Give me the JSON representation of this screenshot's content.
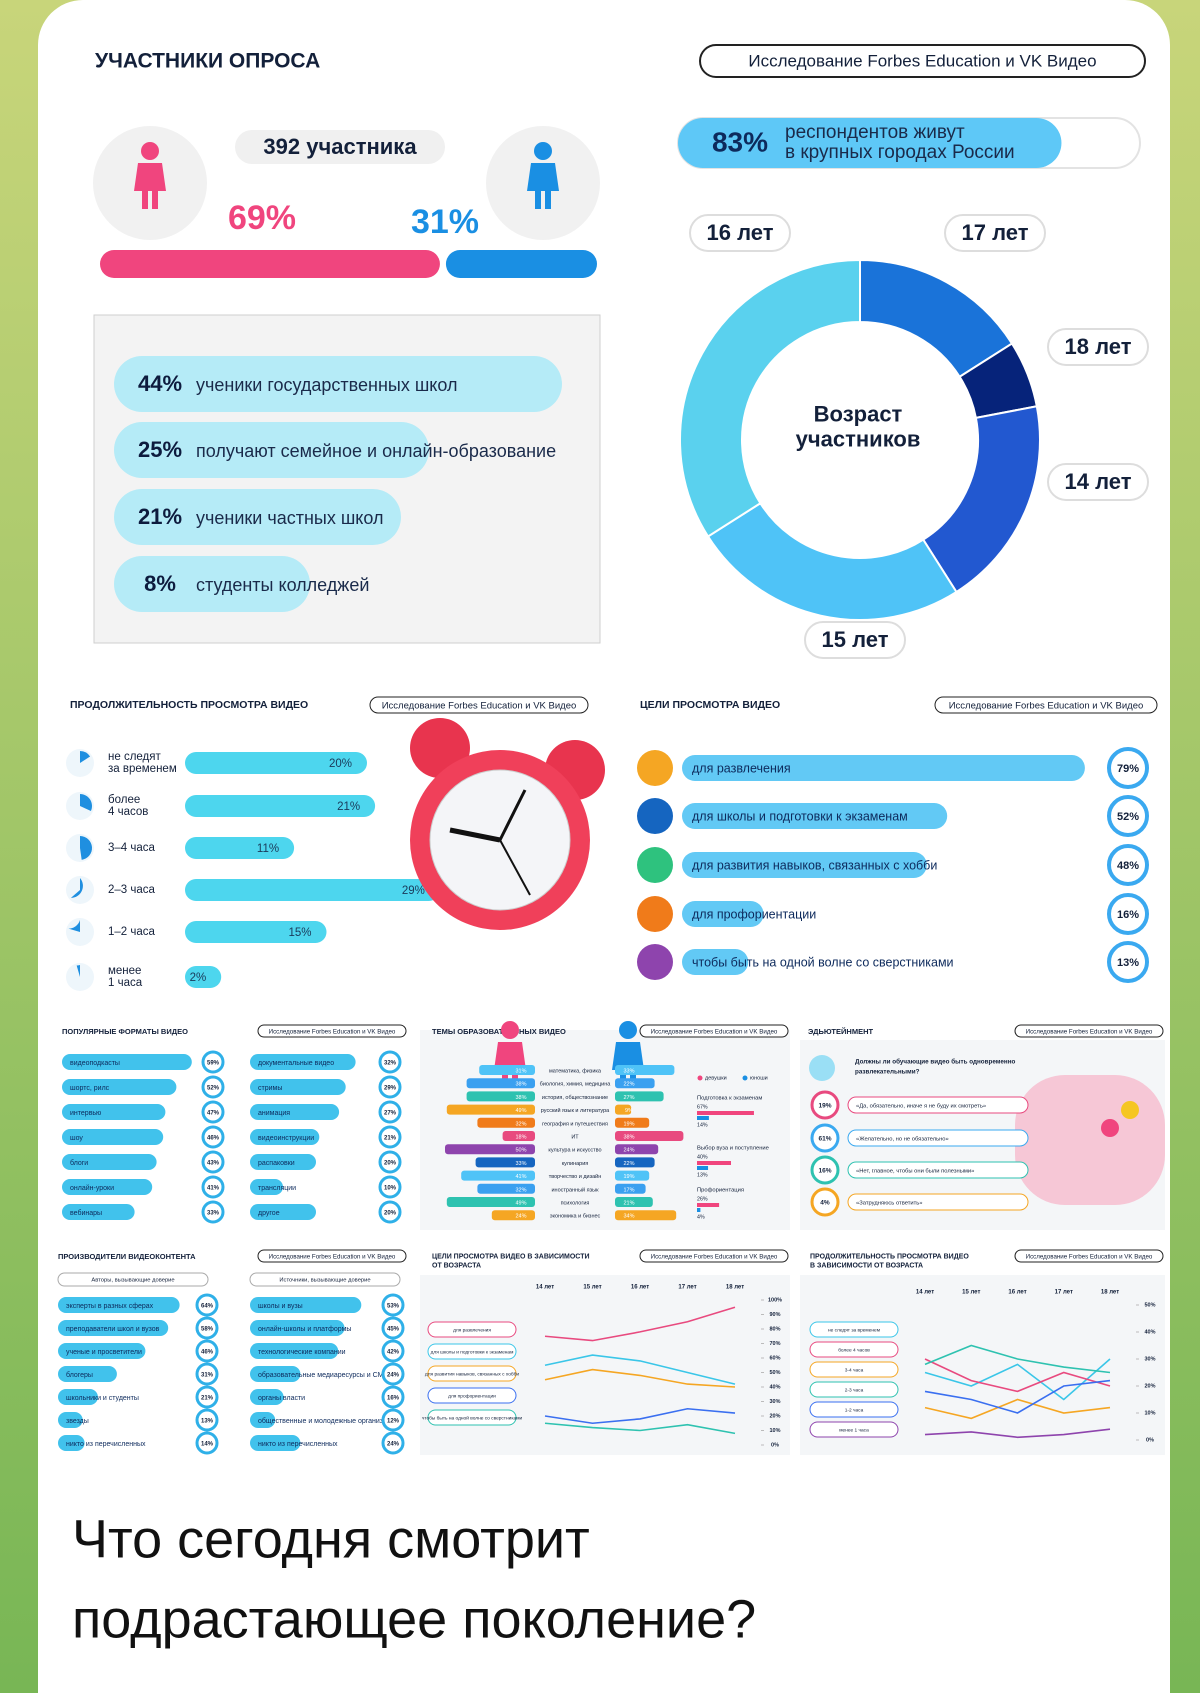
{
  "source": "Исследование Forbes Education и VK Видео",
  "participants": {
    "title": "УЧАСТНИКИ ОПРОСА",
    "count": "392 участника",
    "gender": [
      {
        "value": 69,
        "label": "69%",
        "color": "#f0457e"
      },
      {
        "value": 31,
        "label": "31%",
        "color": "#1a8fe3"
      }
    ],
    "city": {
      "value": 83,
      "label": "83%",
      "text": [
        "респондентов живут",
        "в крупных городах России"
      ]
    },
    "schools": [
      {
        "value": 44,
        "label": "44%",
        "text": "ученики государственных школ"
      },
      {
        "value": 25,
        "label": "25%",
        "text": "получают семейное и онлайн-образование"
      },
      {
        "value": 21,
        "label": "21%",
        "text": "ученики частных школ"
      },
      {
        "value": 8,
        "label": "8%",
        "text": "студенты колледжей"
      }
    ],
    "age": {
      "title": [
        "Возраст",
        "участников"
      ],
      "slices": [
        {
          "name": "17 лет",
          "value": 16,
          "color": "#1a73d9"
        },
        {
          "name": "18 лет",
          "value": 6,
          "color": "#06237a"
        },
        {
          "name": "14 лет",
          "value": 19,
          "color": "#2258d0"
        },
        {
          "name": "15 лет",
          "value": 25,
          "color": "#4fc3f7"
        },
        {
          "name": "16 лет",
          "value": 34,
          "color": "#5ad1ee"
        }
      ]
    }
  },
  "duration": {
    "title": "ПРОДОЛЖИТЕЛЬНОСТЬ ПРОСМОТРА ВИДЕО",
    "rows": [
      {
        "name": [
          "не следят",
          "за временем"
        ],
        "value": 20,
        "label": "20%"
      },
      {
        "name": [
          "более",
          "4 часов"
        ],
        "value": 21,
        "label": "21%"
      },
      {
        "name": "3–4 часа",
        "value": 11,
        "label": "11%"
      },
      {
        "name": "2–3 часа",
        "value": 29,
        "label": "29%"
      },
      {
        "name": "1–2 часа",
        "value": 15,
        "label": "15%"
      },
      {
        "name": [
          "менее",
          "1 часа"
        ],
        "value": 2,
        "label": "2%"
      }
    ]
  },
  "goals": {
    "title": "ЦЕЛИ ПРОСМОТРА ВИДЕО",
    "rows": [
      {
        "name": "для развлечения",
        "value": 79,
        "label": "79%",
        "color": "#f5a623"
      },
      {
        "name": "для школы и подготовки к экзаменам",
        "value": 52,
        "label": "52%",
        "color": "#1565c0"
      },
      {
        "name": "для развития навыков, связанных с хобби",
        "value": 48,
        "label": "48%",
        "color": "#2ec27e"
      },
      {
        "name": "для профориентации",
        "value": 16,
        "label": "16%",
        "color": "#f07b1a"
      },
      {
        "name": "чтобы быть на одной волне со сверстниками",
        "value": 13,
        "label": "13%",
        "color": "#8e44ad"
      }
    ]
  },
  "formats": {
    "title": "ПОПУЛЯРНЫЕ ФОРМАТЫ ВИДЕО",
    "columns": [
      [
        {
          "name": "видеоподкасты",
          "value": 59,
          "label": "59%"
        },
        {
          "name": "шортс, рилс",
          "value": 52,
          "label": "52%"
        },
        {
          "name": "интервью",
          "value": 47,
          "label": "47%"
        },
        {
          "name": "шоу",
          "value": 46,
          "label": "46%"
        },
        {
          "name": "блоги",
          "value": 43,
          "label": "43%"
        },
        {
          "name": "онлайн-уроки",
          "value": 41,
          "label": "41%"
        },
        {
          "name": "вебинары",
          "value": 33,
          "label": "33%"
        }
      ],
      [
        {
          "name": "документальные видео",
          "value": 32,
          "label": "32%"
        },
        {
          "name": "стримы",
          "value": 29,
          "label": "29%"
        },
        {
          "name": "анимация",
          "value": 27,
          "label": "27%"
        },
        {
          "name": "видеоинструкции",
          "value": 21,
          "label": "21%"
        },
        {
          "name": "распаковки",
          "value": 20,
          "label": "20%"
        },
        {
          "name": "трансляции",
          "value": 10,
          "label": "10%"
        },
        {
          "name": "другое",
          "value": 20,
          "label": "20%"
        }
      ]
    ]
  },
  "topics": {
    "title": "ТЕМЫ ОБРАЗОВАТЕЛЬНЫХ ВИДЕО",
    "legend": [
      "девушки",
      "юноши"
    ],
    "colors": [
      "#4fc3f7",
      "#3aa0f0",
      "#2ec2b0",
      "#f5a623",
      "#f07b1a",
      "#e84a7f",
      "#8e44ad",
      "#1565c0"
    ],
    "rows": [
      {
        "name": "математика, физика",
        "female": {
          "value": 31,
          "label": "31%"
        },
        "male": {
          "value": 33,
          "label": "33%"
        }
      },
      {
        "name": "биология, химия, медицина",
        "female": {
          "value": 38,
          "label": "38%"
        },
        "male": {
          "value": 22,
          "label": "22%"
        }
      },
      {
        "name": "история, обществознание",
        "female": {
          "value": 38,
          "label": "38%"
        },
        "male": {
          "value": 27,
          "label": "27%"
        }
      },
      {
        "name": "русский язык и литература",
        "female": {
          "value": 49,
          "label": "49%"
        },
        "male": {
          "value": 9,
          "label": "9%"
        }
      },
      {
        "name": "география и путешествия",
        "female": {
          "value": 32,
          "label": "32%"
        },
        "male": {
          "value": 19,
          "label": "19%"
        }
      },
      {
        "name": "ИТ",
        "female": {
          "value": 18,
          "label": "18%"
        },
        "male": {
          "value": 38,
          "label": "38%"
        }
      },
      {
        "name": "культура и искусство",
        "female": {
          "value": 50,
          "label": "50%"
        },
        "male": {
          "value": 24,
          "label": "24%"
        }
      },
      {
        "name": "кулинария",
        "female": {
          "value": 33,
          "label": "33%"
        },
        "male": {
          "value": 22,
          "label": "22%"
        }
      },
      {
        "name": "творчество и дизайн",
        "female": {
          "value": 41,
          "label": "41%"
        },
        "male": {
          "value": 19,
          "label": "19%"
        }
      },
      {
        "name": "иностранный язык",
        "female": {
          "value": 32,
          "label": "32%"
        },
        "male": {
          "value": 17,
          "label": "17%"
        }
      },
      {
        "name": "психология",
        "female": {
          "value": 49,
          "label": "49%"
        },
        "male": {
          "value": 21,
          "label": "21%"
        }
      },
      {
        "name": "экономика и бизнес",
        "female": {
          "value": 24,
          "label": "24%"
        },
        "male": {
          "value": 34,
          "label": "34%"
        }
      }
    ],
    "extra": [
      {
        "name": "Подготовка к экзаменам",
        "female": {
          "value": 67,
          "label": "67%"
        },
        "male": {
          "value": 14,
          "label": "14%"
        }
      },
      {
        "name": "Выбор вуза и поступление",
        "female": {
          "value": 40,
          "label": "40%"
        },
        "male": {
          "value": 13,
          "label": "13%"
        }
      },
      {
        "name": "Профориентация",
        "female": {
          "value": 26,
          "label": "26%"
        },
        "male": {
          "value": 4,
          "label": "4%"
        }
      }
    ]
  },
  "edutainment": {
    "title": "ЭДЬЮТЕЙНМЕНТ",
    "question": [
      "Должны ли обучающие видео быть одновременно",
      "развлекательными?"
    ],
    "answers": [
      {
        "value": 19,
        "label": "19%",
        "text": "«Да, обязательно, иначе я не буду их смотреть»",
        "color": "#e84a7f"
      },
      {
        "value": 61,
        "label": "61%",
        "text": "«Желательно, но не обязательно»",
        "color": "#3aa9f0"
      },
      {
        "value": 16,
        "label": "16%",
        "text": "«Нет, главное, чтобы они были полезными»",
        "color": "#2ec2b0"
      },
      {
        "value": 4,
        "label": "4%",
        "text": "«Затрудняюсь ответить»",
        "color": "#f5a623"
      }
    ]
  },
  "producers": {
    "title": "ПРОИЗВОДИТЕЛИ ВИДЕОКОНТЕНТА",
    "groups": [
      {
        "heading": "Авторы, вызывающие доверие",
        "rows": [
          {
            "name": "эксперты в разных сферах",
            "value": 64,
            "label": "64%"
          },
          {
            "name": "преподаватели школ и вузов",
            "value": 58,
            "label": "58%"
          },
          {
            "name": "ученые и просветители",
            "value": 46,
            "label": "46%"
          },
          {
            "name": "блогеры",
            "value": 31,
            "label": "31%"
          },
          {
            "name": "школьники и студенты",
            "value": 21,
            "label": "21%"
          },
          {
            "name": "звезды",
            "value": 13,
            "label": "13%"
          },
          {
            "name": "никто из перечисленных",
            "value": 14,
            "label": "14%"
          }
        ]
      },
      {
        "heading": "Источники, вызывающие доверие",
        "rows": [
          {
            "name": "школы и вузы",
            "value": 53,
            "label": "53%"
          },
          {
            "name": "онлайн-школы и платформы",
            "value": 45,
            "label": "45%"
          },
          {
            "name": "технологические компании",
            "value": 42,
            "label": "42%"
          },
          {
            "name": "образовательные медиаресурсы и СМИ",
            "value": 24,
            "label": "24%"
          },
          {
            "name": "органы власти",
            "value": 16,
            "label": "16%"
          },
          {
            "name": "общественные и молодежные организации",
            "value": 12,
            "label": "12%"
          },
          {
            "name": "никто из перечисленных",
            "value": 24,
            "label": "24%"
          }
        ]
      }
    ]
  },
  "goals_by_age": {
    "type": "line",
    "title": [
      "ЦЕЛИ ПРОСМОТРА ВИДЕО В ЗАВИСИМОСТИ",
      "ОТ ВОЗРАСТА"
    ],
    "categories": [
      "14 лет",
      "15 лет",
      "16 лет",
      "17 лет",
      "18 лет"
    ],
    "ylim": [
      0,
      100
    ],
    "yticks": [
      {
        "value": 0,
        "label": "0%"
      },
      {
        "value": 10,
        "label": "10%"
      },
      {
        "value": 20,
        "label": "20%"
      },
      {
        "value": 30,
        "label": "30%"
      },
      {
        "value": 40,
        "label": "40%"
      },
      {
        "value": 50,
        "label": "50%"
      },
      {
        "value": 60,
        "label": "60%"
      },
      {
        "value": 70,
        "label": "70%"
      },
      {
        "value": 80,
        "label": "80%"
      },
      {
        "value": 90,
        "label": "90%"
      },
      {
        "value": 100,
        "label": "100%"
      }
    ],
    "series": [
      {
        "name": "для развлечения",
        "color": "#e84a7f",
        "values": [
          75,
          72,
          78,
          85,
          95
        ]
      },
      {
        "name": "для школы и подготовки к экзаменам",
        "color": "#3ac6e8",
        "values": [
          55,
          62,
          58,
          50,
          42
        ]
      },
      {
        "name": "для развития навыков, связанных с хобби",
        "color": "#f5a623",
        "values": [
          45,
          52,
          48,
          42,
          40
        ]
      },
      {
        "name": "для профориентации",
        "color": "#3a6ff0",
        "values": [
          20,
          15,
          18,
          25,
          22
        ]
      },
      {
        "name": "чтобы быть на одной волне со сверстниками",
        "color": "#2ec2b0",
        "values": [
          15,
          12,
          10,
          14,
          8
        ]
      }
    ]
  },
  "duration_by_age": {
    "type": "line",
    "title": [
      "ПРОДОЛЖИТЕЛЬНОСТЬ ПРОСМОТРА ВИДЕО",
      "В ЗАВИСИМОСТИ ОТ ВОЗРАСТА"
    ],
    "categories": [
      "14 лет",
      "15 лет",
      "16 лет",
      "17 лет",
      "18 лет"
    ],
    "ylim": [
      0,
      50
    ],
    "yticks": [
      {
        "value": 0,
        "label": "0%"
      },
      {
        "value": 10,
        "label": "10%"
      },
      {
        "value": 20,
        "label": "20%"
      },
      {
        "value": 30,
        "label": "30%"
      },
      {
        "value": 40,
        "label": "40%"
      },
      {
        "value": 50,
        "label": "50%"
      }
    ],
    "series": [
      {
        "name": "не следят за временем",
        "color": "#3ac6e8",
        "values": [
          25,
          20,
          28,
          15,
          30
        ]
      },
      {
        "name": "более 4 часов",
        "color": "#e84a7f",
        "values": [
          30,
          22,
          18,
          25,
          20
        ]
      },
      {
        "name": "3-4 часа",
        "color": "#f5a623",
        "values": [
          12,
          8,
          15,
          10,
          12
        ]
      },
      {
        "name": "2-3 часа",
        "color": "#2ec2b0",
        "values": [
          28,
          35,
          30,
          27,
          25
        ]
      },
      {
        "name": "1-2 часа",
        "color": "#3a6ff0",
        "values": [
          18,
          15,
          10,
          20,
          22
        ]
      },
      {
        "name": "менее 1 часа",
        "color": "#8e44ad",
        "values": [
          2,
          3,
          1,
          2,
          4
        ]
      }
    ]
  },
  "caption": [
    "Что сегодня смотрит",
    "подрастающее поколение?"
  ]
}
